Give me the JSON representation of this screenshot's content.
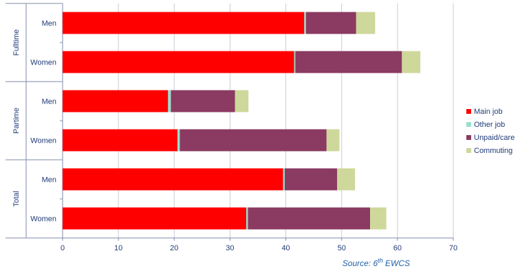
{
  "chart_data": {
    "type": "bar",
    "orientation": "horizontal",
    "stacked": true,
    "groups": [
      {
        "label": "Fulltime",
        "categories": [
          "Men",
          "Women"
        ]
      },
      {
        "label": "Partime",
        "categories": [
          "Men",
          "Women"
        ]
      },
      {
        "label": "Total",
        "categories": [
          "Men",
          "Women"
        ]
      }
    ],
    "series": [
      {
        "name": "Main job",
        "color": "#ff0000",
        "values": [
          43.3,
          41.5,
          18.9,
          20.6,
          39.5,
          32.9
        ]
      },
      {
        "name": "Other job",
        "color": "#99e0cc",
        "values": [
          0.3,
          0.2,
          0.5,
          0.4,
          0.3,
          0.3
        ]
      },
      {
        "name": "Unpaid/care",
        "color": "#8b3a62",
        "values": [
          9.0,
          19.1,
          11.5,
          26.3,
          9.4,
          21.9
        ]
      },
      {
        "name": "Commuting",
        "color": "#cdd89a",
        "values": [
          3.4,
          3.3,
          2.4,
          2.3,
          3.2,
          2.9
        ]
      }
    ],
    "xlim": [
      0,
      70
    ],
    "xticks": [
      0,
      10,
      20,
      30,
      40,
      50,
      60,
      70
    ],
    "grid": "vertical",
    "legend_position": "right"
  },
  "source": {
    "prefix": "Source: 6",
    "superscript": "th",
    "suffix": " EWCS"
  }
}
